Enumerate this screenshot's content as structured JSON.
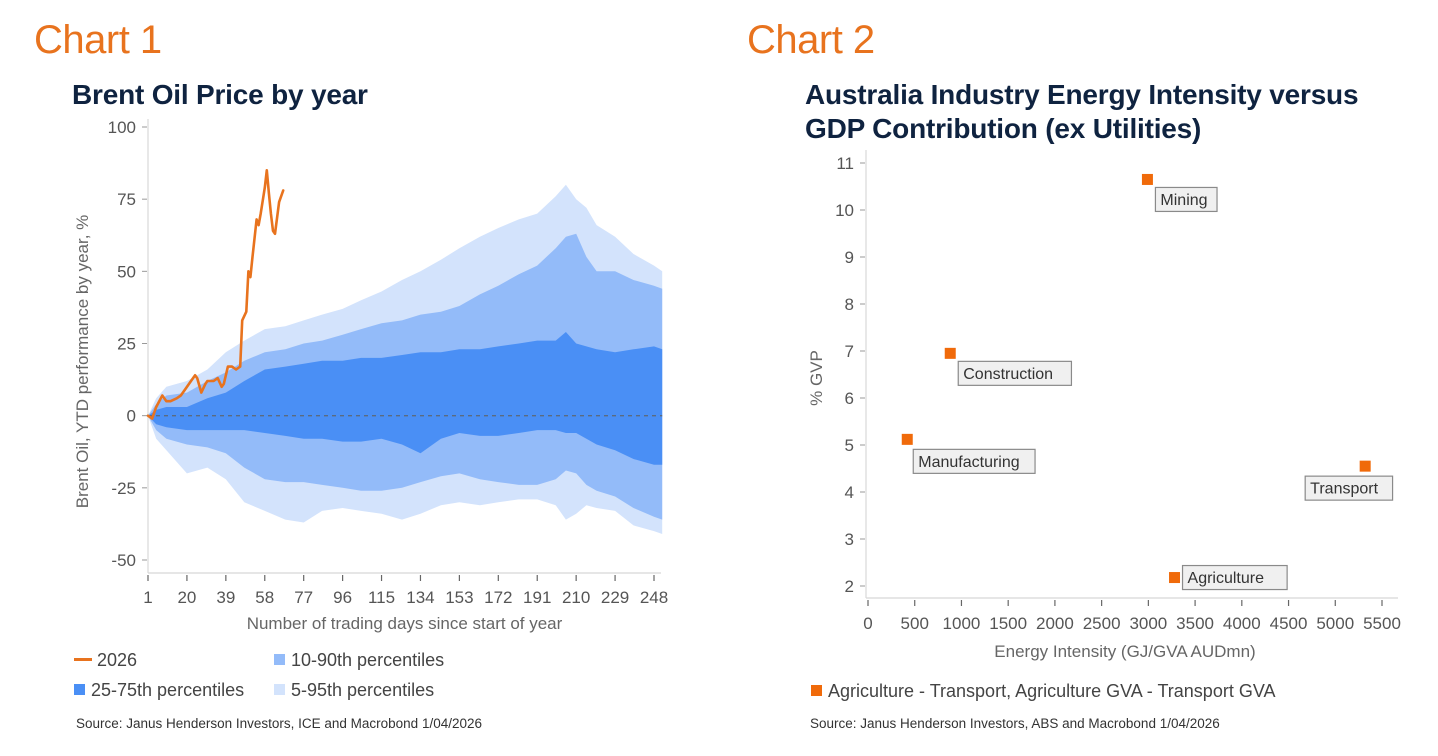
{
  "colors": {
    "accent_orange": "#e8731e",
    "title_navy": "#0f2340",
    "band_25_75": "#4a8ff5",
    "band_10_90": "#93bbf9",
    "band_5_95": "#d3e3fc",
    "marker_orange": "#f06a0a"
  },
  "chart1": {
    "label": "Chart 1",
    "source": "Source: Janus Henderson Investors, ICE and Macrobond  1/04/2026",
    "legend": [
      {
        "name": "2026",
        "type": "line",
        "color": "#e8731e"
      },
      {
        "name": "10-90th percentiles",
        "type": "area",
        "color": "#93bbf9"
      },
      {
        "name": "25-75th percentiles",
        "type": "area",
        "color": "#4a8ff5"
      },
      {
        "name": "5-95th percentiles",
        "type": "area",
        "color": "#d3e3fc"
      }
    ]
  },
  "chart2": {
    "label": "Chart 2",
    "source": "Source: Janus Henderson Investors, ABS and Macrobond  1/04/2026",
    "legend": [
      {
        "name": "Agriculture - Transport, Agriculture GVA - Transport GVA",
        "type": "marker",
        "color": "#f06a0a"
      }
    ]
  },
  "chart_data": [
    {
      "type": "area",
      "title": "Brent Oil Price by year",
      "xlabel": "Number of trading days since start of year",
      "ylabel": "Brent Oil, YTD performance by year, %",
      "xlim": [
        1,
        252
      ],
      "ylim": [
        -50,
        100
      ],
      "xticks": [
        1,
        20,
        39,
        58,
        77,
        96,
        115,
        134,
        153,
        172,
        191,
        210,
        229,
        248
      ],
      "yticks": [
        100,
        75,
        50,
        25,
        0,
        -25,
        -50
      ],
      "zero_line": "dashed",
      "legend_position": "bottom",
      "bands": {
        "x": [
          1,
          5,
          10,
          20,
          30,
          39,
          48,
          58,
          68,
          77,
          86,
          96,
          105,
          115,
          125,
          134,
          144,
          153,
          163,
          172,
          182,
          191,
          200,
          205,
          210,
          215,
          220,
          229,
          238,
          248,
          252
        ],
        "p5_95": {
          "upper": [
            0,
            6,
            10,
            12,
            16,
            22,
            26,
            30,
            31,
            33,
            35,
            37,
            40,
            43,
            47,
            50,
            54,
            58,
            62,
            65,
            68,
            70,
            76,
            80,
            75,
            72,
            66,
            62,
            56,
            52,
            50
          ],
          "lower": [
            0,
            -8,
            -12,
            -20,
            -18,
            -22,
            -30,
            -33,
            -36,
            -37,
            -33,
            -32,
            -33,
            -34,
            -36,
            -34,
            -31,
            -30,
            -31,
            -30,
            -29,
            -29,
            -31,
            -36,
            -34,
            -31,
            -32,
            -33,
            -38,
            -40,
            -41
          ]
        },
        "p10_90": {
          "upper": [
            0,
            4,
            7,
            8,
            12,
            15,
            19,
            22,
            23,
            25,
            26,
            28,
            30,
            32,
            33,
            35,
            36,
            38,
            42,
            45,
            49,
            52,
            58,
            62,
            63,
            55,
            50,
            50,
            47,
            45,
            44
          ],
          "lower": [
            0,
            -5,
            -8,
            -10,
            -11,
            -13,
            -18,
            -22,
            -23,
            -23,
            -24,
            -25,
            -26,
            -26,
            -25,
            -23,
            -21,
            -20,
            -22,
            -23,
            -24,
            -24,
            -22,
            -19,
            -20,
            -24,
            -26,
            -28,
            -32,
            -35,
            -36
          ]
        },
        "p25_75": {
          "upper": [
            0,
            2,
            3,
            3,
            6,
            8,
            12,
            16,
            17,
            18,
            19,
            19,
            20,
            20,
            21,
            22,
            22,
            23,
            23,
            24,
            25,
            26,
            26,
            29,
            25,
            24,
            23,
            22,
            23,
            24,
            23
          ],
          "lower": [
            0,
            -3,
            -4,
            -5,
            -5,
            -5,
            -5,
            -6,
            -7,
            -8,
            -8,
            -9,
            -9,
            -8,
            -10,
            -13,
            -8,
            -6,
            -7,
            -7,
            -6,
            -5,
            -5,
            -6,
            -6,
            -8,
            -10,
            -12,
            -15,
            -17,
            -17
          ]
        }
      },
      "series": [
        {
          "name": "2026",
          "x": [
            1,
            3,
            5,
            8,
            10,
            12,
            15,
            17,
            19,
            22,
            24,
            25,
            27,
            29,
            30,
            33,
            35,
            37,
            38,
            40,
            42,
            44,
            46,
            47,
            49,
            50,
            51,
            52,
            54,
            55,
            56,
            58,
            59,
            60,
            61,
            62,
            63,
            65,
            67
          ],
          "values": [
            0,
            -1,
            3,
            7,
            5,
            5,
            6,
            7,
            9,
            12,
            14,
            13,
            8,
            11,
            12,
            12,
            13,
            10,
            11,
            17,
            17,
            16,
            17,
            33,
            36,
            50,
            48,
            55,
            68,
            66,
            70,
            79,
            85,
            77,
            70,
            64,
            63,
            74,
            78
          ]
        }
      ]
    },
    {
      "type": "scatter",
      "title": "Australia Industry Energy Intensity versus GDP Contribution (ex Utilities)",
      "xlabel": "Energy Intensity (GJ/GVA AUDmn)",
      "ylabel": "% GVP",
      "xlim": [
        0,
        5700
      ],
      "ylim": [
        1.75,
        11.2
      ],
      "xticks": [
        0,
        500,
        1000,
        1500,
        2000,
        2500,
        3000,
        3500,
        4000,
        4500,
        5000,
        5500
      ],
      "yticks": [
        11,
        10,
        9,
        8,
        7,
        6,
        5,
        4,
        3,
        2
      ],
      "legend_position": "bottom",
      "series": [
        {
          "name": "Agriculture - Transport, Agriculture GVA - Transport GVA",
          "points": [
            {
              "label": "Mining",
              "x": 2990,
              "y": 10.65
            },
            {
              "label": "Construction",
              "x": 880,
              "y": 6.95
            },
            {
              "label": "Manufacturing",
              "x": 420,
              "y": 5.12
            },
            {
              "label": "Transport",
              "x": 5320,
              "y": 4.55
            },
            {
              "label": "Agriculture",
              "x": 3280,
              "y": 2.18
            }
          ]
        }
      ]
    }
  ]
}
